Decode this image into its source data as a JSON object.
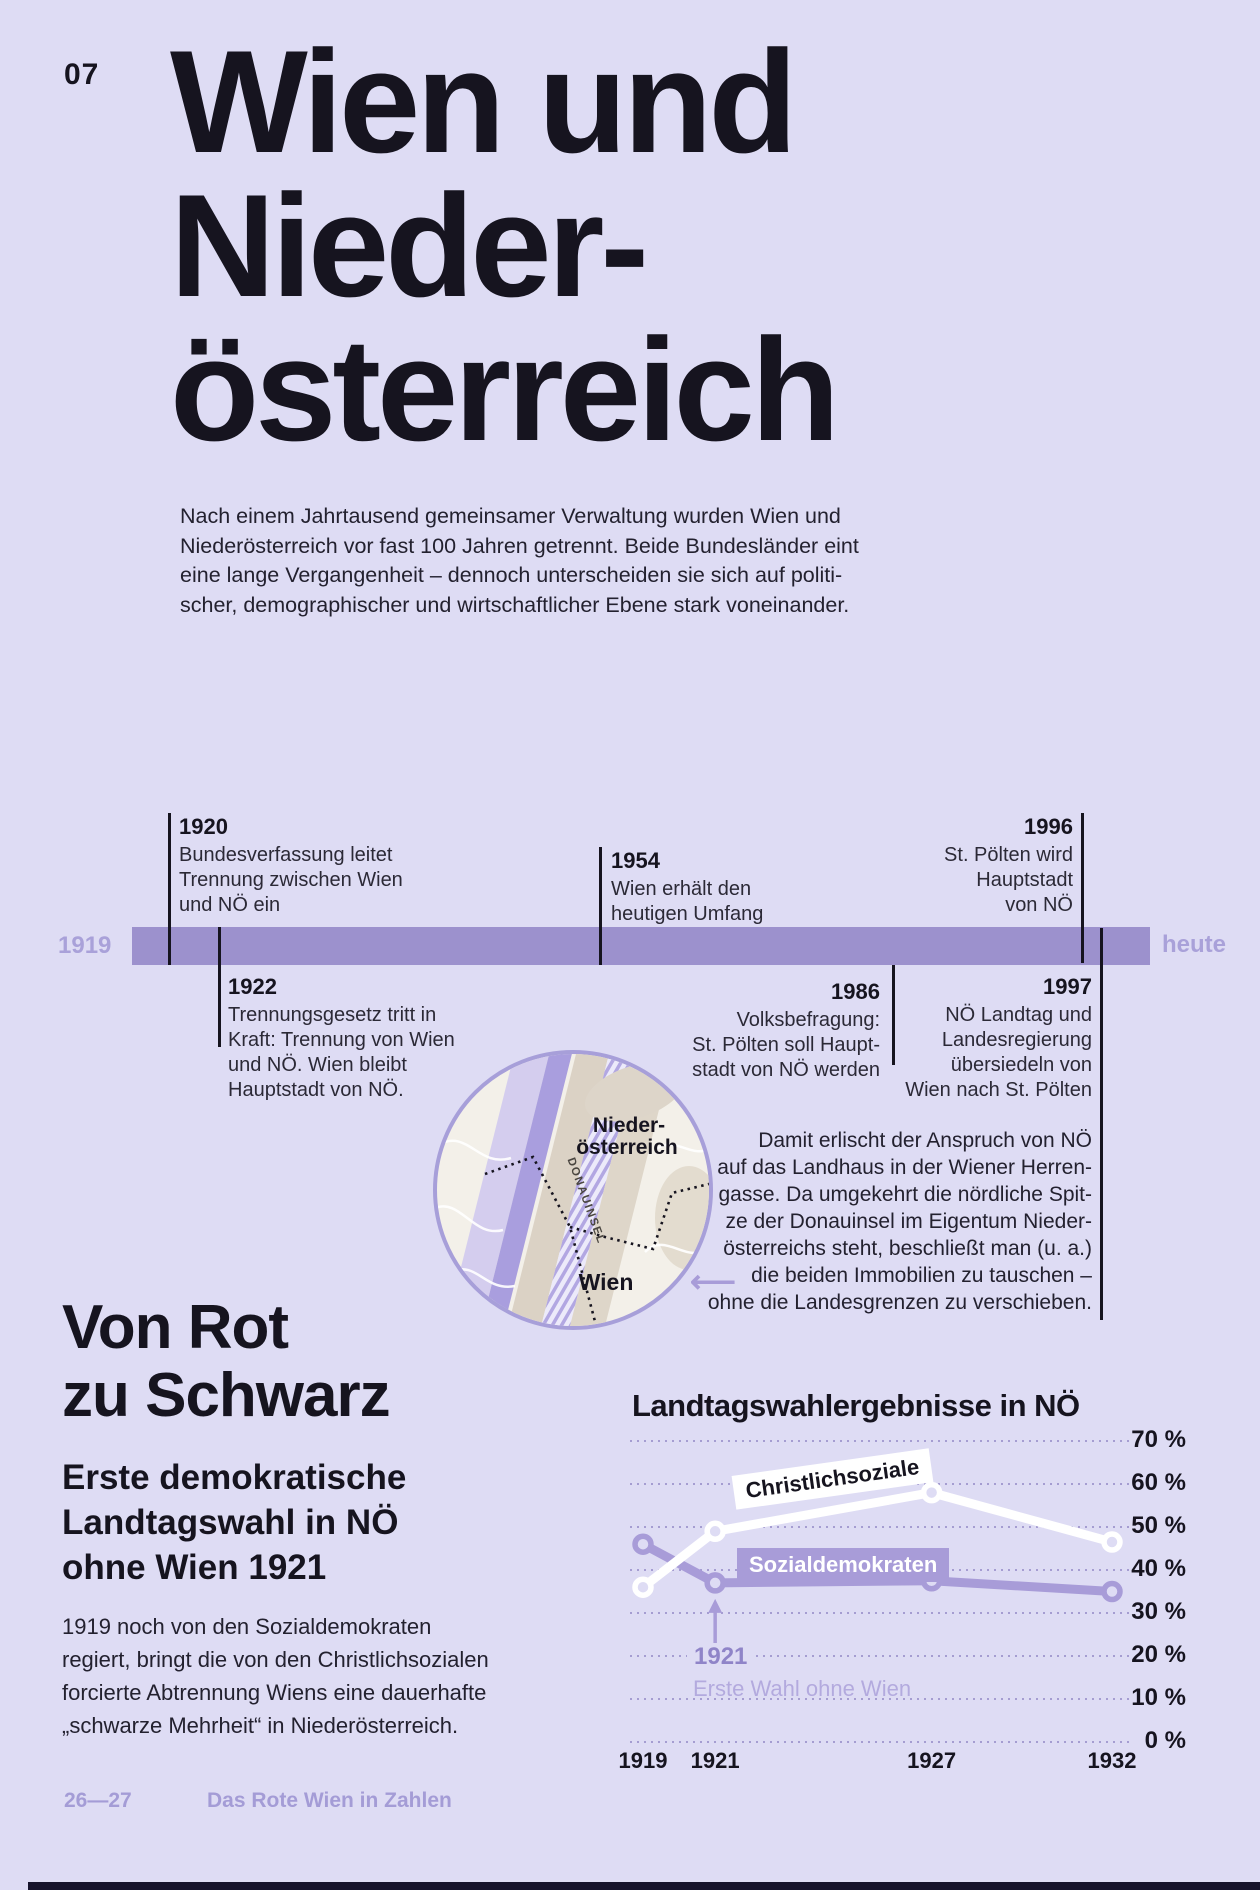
{
  "page": {
    "number": "07",
    "background": "#dedcf4",
    "accent_purple": "#a89cd8",
    "bar_purple": "#9c91cd",
    "dark": "#16141f",
    "footer_pages": "26—27",
    "footer_title": "Das Rote Wien in Zahlen"
  },
  "title": "Wien und\nNieder-\nösterreich",
  "intro": "Nach einem Jahrtausend gemeinsamer Verwaltung wurden Wien und\nNiederösterreich vor fast 100 Jahren getrennt. Beide Bundesländer eint\neine lange Vergangenheit – dennoch unterscheiden sie sich auf politi-\nscher, demographischer und wirtschaftlicher Ebene stark voneinander.",
  "timeline": {
    "start_label": "1919",
    "end_label": "heute",
    "events": [
      {
        "year": "1920",
        "position": "above",
        "text": "Bundesverfassung leitet\nTrennung zwischen Wien\nund NÖ ein"
      },
      {
        "year": "1922",
        "position": "below",
        "text": "Trennungsgesetz tritt in\nKraft: Trennung von Wien\nund NÖ. Wien bleibt\nHauptstadt von NÖ."
      },
      {
        "year": "1954",
        "position": "above",
        "text": "Wien erhält den\nheutigen Umfang"
      },
      {
        "year": "1986",
        "position": "below",
        "text": "Volksbefragung:\nSt. Pölten soll Haupt-\nstadt von NÖ werden"
      },
      {
        "year": "1996",
        "position": "above",
        "text": "St. Pölten wird\nHauptstadt\nvon NÖ"
      },
      {
        "year": "1997",
        "position": "below",
        "text": "NÖ Landtag und\nLandesregierung\nübersiedeln von\nWien nach St. Pölten"
      }
    ],
    "note": "Damit erlischt der Anspruch von NÖ\nauf das Landhaus in der Wiener Herren-\ngasse. Da umgekehrt die nördliche Spit-\nze der Donauinsel im Eigentum Nieder-\nösterreichs steht, beschließt man (u. a.)\ndie beiden Immobilien zu tauschen –\nohne die Landesgrenzen zu verschieben."
  },
  "icons": {
    "map_arrow": "⟵"
  },
  "map": {
    "labels": {
      "region_line1": "Nieder-",
      "region_line2": "österreich",
      "river": "DONAUINSEL",
      "city": "Wien"
    }
  },
  "section": {
    "heading": "Von Rot\nzu Schwarz",
    "subheading": "Erste demokratische\nLandtagswahl in NÖ\nohne Wien 1921",
    "body": "1919 noch von den Sozialdemokraten\nregiert, bringt die von den Christlichsozialen\nforcierte Abtrennung Wiens eine dauerhafte\n„schwarze Mehrheit“ in Niederösterreich."
  },
  "chart_data": {
    "type": "line",
    "title": "Landtagswahlergebnisse in NÖ",
    "x": [
      1919,
      1921,
      1927,
      1932
    ],
    "x_tick_labels": [
      "1919",
      "1921",
      "1927",
      "1932"
    ],
    "y_tick_labels": [
      "70 %",
      "60 %",
      "50 %",
      "40 %",
      "30 %",
      "20 %",
      "10 %",
      "0 %"
    ],
    "y_tick_values": [
      70,
      60,
      50,
      40,
      30,
      20,
      10,
      0
    ],
    "ylim": [
      0,
      70
    ],
    "y_unit": "%",
    "grid": "dotted-horizontal",
    "legend_position": "inline-labels",
    "series": [
      {
        "name": "Christlichsoziale",
        "color": "#ffffff",
        "values": [
          36,
          49,
          58,
          46.5
        ]
      },
      {
        "name": "Sozialdemokraten",
        "color": "#a89cd8",
        "values": [
          46,
          37,
          37.5,
          35
        ]
      }
    ],
    "annotation": {
      "year": 1921,
      "label": "1921",
      "text": "Erste Wahl ohne Wien"
    }
  }
}
